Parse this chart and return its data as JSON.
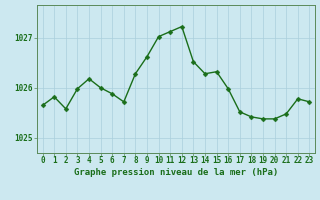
{
  "x": [
    0,
    1,
    2,
    3,
    4,
    5,
    6,
    7,
    8,
    9,
    10,
    11,
    12,
    13,
    14,
    15,
    16,
    17,
    18,
    19,
    20,
    21,
    22,
    23
  ],
  "y": [
    1025.65,
    1025.82,
    1025.58,
    1025.98,
    1026.18,
    1026.0,
    1025.88,
    1025.72,
    1026.28,
    1026.62,
    1027.02,
    1027.12,
    1027.22,
    1026.52,
    1026.28,
    1026.32,
    1025.98,
    1025.52,
    1025.42,
    1025.38,
    1025.38,
    1025.48,
    1025.78,
    1025.72
  ],
  "line_color": "#1a6e1a",
  "marker": "D",
  "marker_size": 2.5,
  "linewidth": 1.0,
  "bg_color": "#cce8f0",
  "grid_color": "#aacfdc",
  "tick_label_color": "#1a6e1a",
  "xlabel": "Graphe pression niveau de la mer (hPa)",
  "xlabel_color": "#1a6e1a",
  "xlabel_fontsize": 6.5,
  "ylabel_ticks": [
    1025,
    1026,
    1027
  ],
  "ylim": [
    1024.7,
    1027.65
  ],
  "xlim": [
    -0.5,
    23.5
  ],
  "tick_fontsize": 5.5,
  "axis_color": "#5a8a5a"
}
